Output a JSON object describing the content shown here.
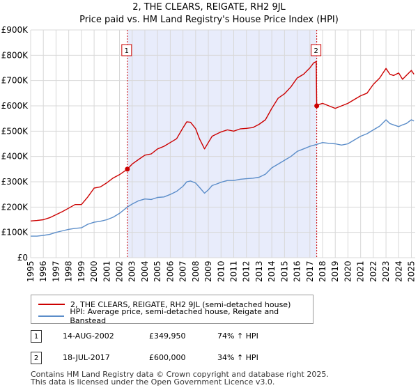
{
  "title_line1": "2, THE CLEARS, REIGATE, RH2 9JL",
  "title_line2": "Price paid vs. HM Land Registry's House Price Index (HPI)",
  "colors": {
    "property": "#cc0000",
    "hpi": "#5b8dc9",
    "shade": "#e8ecfb",
    "grid": "#d8d8d8"
  },
  "legend": {
    "property_label": "2, THE CLEARS, REIGATE, RH2 9JL (semi-detached house)",
    "hpi_label": "HPI: Average price, semi-detached house, Reigate and Banstead"
  },
  "transactions": [
    {
      "num": "1",
      "date": "14-AUG-2002",
      "price": "£349,950",
      "hpi_change": "74% ↑ HPI"
    },
    {
      "num": "2",
      "date": "18-JUL-2017",
      "price": "£600,000",
      "hpi_change": "34% ↑ HPI"
    }
  ],
  "footer_line1": "Contains HM Land Registry data © Crown copyright and database right 2025.",
  "footer_line2": "This data is licensed under the Open Government Licence v3.0.",
  "chart_data": {
    "type": "line",
    "title": "2, THE CLEARS, REIGATE, RH2 9JL",
    "subtitle": "Price paid vs. HM Land Registry's House Price Index (HPI)",
    "xlabel": "",
    "ylabel": "",
    "xlim": [
      1995,
      2025.3
    ],
    "ylim": [
      0,
      900000
    ],
    "grid": true,
    "legend_position": "below",
    "x_ticks": [
      1995,
      1996,
      1997,
      1998,
      1999,
      2000,
      2001,
      2002,
      2003,
      2004,
      2005,
      2006,
      2007,
      2008,
      2009,
      2010,
      2011,
      2012,
      2013,
      2014,
      2015,
      2016,
      2017,
      2018,
      2019,
      2020,
      2021,
      2022,
      2023,
      2024,
      2025
    ],
    "y_ticks": [
      {
        "value": 0,
        "label": "£0"
      },
      {
        "value": 100000,
        "label": "£100K"
      },
      {
        "value": 200000,
        "label": "£200K"
      },
      {
        "value": 300000,
        "label": "£300K"
      },
      {
        "value": 400000,
        "label": "£400K"
      },
      {
        "value": 500000,
        "label": "£500K"
      },
      {
        "value": 600000,
        "label": "£600K"
      },
      {
        "value": 700000,
        "label": "£700K"
      },
      {
        "value": 800000,
        "label": "£800K"
      },
      {
        "value": 900000,
        "label": "£900K"
      }
    ],
    "shaded_range": [
      2002.62,
      2017.54
    ],
    "markers": [
      {
        "label": "1",
        "x": 2002.62,
        "y": 349950
      },
      {
        "label": "2",
        "x": 2017.54,
        "y": 600000
      }
    ],
    "series": [
      {
        "name": "2, THE CLEARS, REIGATE, RH2 9JL (semi-detached house)",
        "color": "#cc0000",
        "x": [
          1995,
          1995.5,
          1996,
          1996.5,
          1997,
          1997.5,
          1998,
          1998.5,
          1999,
          1999.5,
          2000,
          2000.5,
          2001,
          2001.5,
          2002,
          2002.62,
          2003,
          2003.5,
          2004,
          2004.5,
          2005,
          2005.5,
          2006,
          2006.5,
          2007,
          2007.3,
          2007.6,
          2008,
          2008.3,
          2008.7,
          2009,
          2009.3,
          2009.7,
          2010,
          2010.5,
          2011,
          2011.5,
          2012,
          2012.5,
          2013,
          2013.5,
          2014,
          2014.5,
          2015,
          2015.5,
          2016,
          2016.5,
          2017,
          2017.3,
          2017.5,
          2017.54,
          2017.7,
          2018,
          2018.5,
          2019,
          2019.5,
          2020,
          2020.5,
          2021,
          2021.5,
          2022,
          2022.5,
          2023,
          2023.3,
          2023.6,
          2024,
          2024.3,
          2024.6,
          2025,
          2025.2
        ],
        "y": [
          145000,
          147000,
          150000,
          158000,
          170000,
          182000,
          196000,
          210000,
          210000,
          240000,
          275000,
          280000,
          296000,
          315000,
          328000,
          349950,
          370000,
          388000,
          405000,
          410000,
          430000,
          440000,
          455000,
          470000,
          513000,
          537000,
          535000,
          510000,
          470000,
          430000,
          455000,
          480000,
          490000,
          497000,
          505000,
          500000,
          509000,
          511000,
          514000,
          527000,
          545000,
          590000,
          630000,
          648000,
          675000,
          710000,
          725000,
          750000,
          770000,
          775000,
          600000,
          605000,
          610000,
          600000,
          590000,
          600000,
          610000,
          625000,
          640000,
          650000,
          685000,
          710000,
          748000,
          725000,
          720000,
          730000,
          705000,
          720000,
          740000,
          725000
        ]
      },
      {
        "name": "HPI: Average price, semi-detached house, Reigate and Banstead",
        "color": "#5b8dc9",
        "x": [
          1995,
          1995.5,
          1996,
          1996.5,
          1997,
          1997.5,
          1998,
          1998.5,
          1999,
          1999.5,
          2000,
          2000.5,
          2001,
          2001.5,
          2002,
          2002.62,
          2003,
          2003.5,
          2004,
          2004.5,
          2005,
          2005.5,
          2006,
          2006.5,
          2007,
          2007.3,
          2007.6,
          2008,
          2008.3,
          2008.7,
          2009,
          2009.3,
          2009.7,
          2010,
          2010.5,
          2011,
          2011.5,
          2012,
          2012.5,
          2013,
          2013.5,
          2014,
          2014.5,
          2015,
          2015.5,
          2016,
          2016.5,
          2017,
          2017.5,
          2018,
          2018.5,
          2019,
          2019.5,
          2020,
          2020.5,
          2021,
          2021.5,
          2022,
          2022.5,
          2023,
          2023.3,
          2023.6,
          2024,
          2024.3,
          2024.6,
          2025,
          2025.2
        ],
        "y": [
          85000,
          85000,
          88000,
          92000,
          100000,
          106000,
          112000,
          116000,
          118000,
          132000,
          140000,
          144000,
          150000,
          160000,
          175000,
          200000,
          212000,
          225000,
          232000,
          230000,
          238000,
          240000,
          250000,
          262000,
          282000,
          300000,
          303000,
          295000,
          278000,
          255000,
          268000,
          285000,
          292000,
          298000,
          305000,
          305000,
          310000,
          312000,
          314000,
          318000,
          330000,
          355000,
          370000,
          385000,
          400000,
          420000,
          430000,
          440000,
          447000,
          455000,
          452000,
          450000,
          445000,
          450000,
          465000,
          480000,
          490000,
          505000,
          520000,
          545000,
          530000,
          525000,
          518000,
          525000,
          530000,
          545000,
          540000
        ]
      }
    ]
  }
}
